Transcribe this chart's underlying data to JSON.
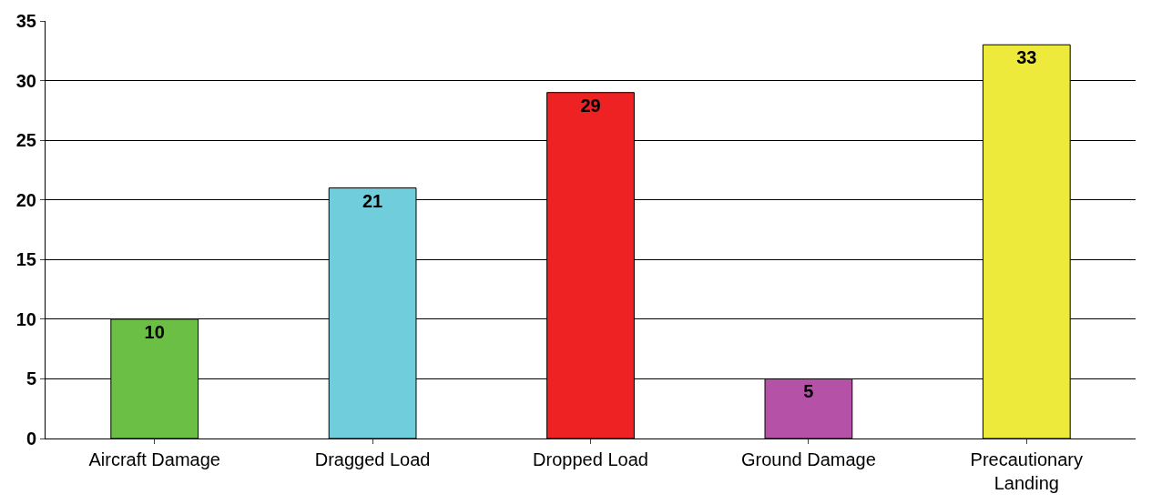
{
  "chart_data": {
    "type": "bar",
    "categories": [
      "Aircraft Damage",
      "Dragged Load",
      "Dropped Load",
      "Ground Damage",
      "Precautionary Landing"
    ],
    "values": [
      10,
      21,
      29,
      5,
      33
    ],
    "colors": [
      "#6cbf45",
      "#70cddc",
      "#ee2222",
      "#b552a8",
      "#eeea3c"
    ],
    "ylim": [
      0,
      35
    ],
    "yticks": [
      0,
      5,
      10,
      15,
      20,
      25,
      30,
      35
    ],
    "grid": "y",
    "data_labels": true
  }
}
